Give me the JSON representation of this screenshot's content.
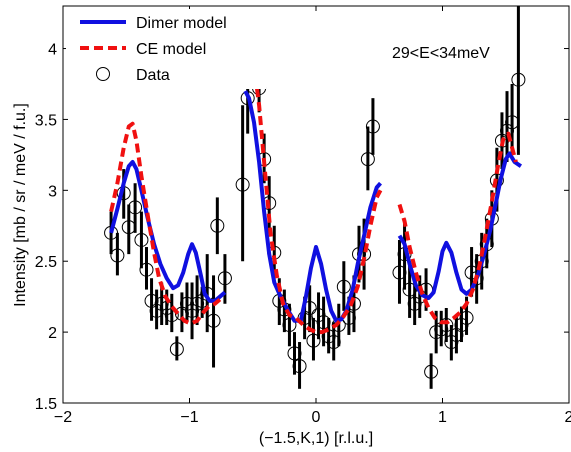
{
  "chart_data": {
    "type": "scatter",
    "xlabel": "(−1.5,K,1) [r.l.u.]",
    "ylabel": "Intensity [mb / sr / meV / f.u.]",
    "xlim": [
      -2,
      2
    ],
    "ylim": [
      1.5,
      4.3
    ],
    "xticks": [
      -2,
      -1,
      0,
      1,
      2
    ],
    "xtick_labels": [
      "−2",
      "−1",
      "0",
      "1",
      "2"
    ],
    "yticks": [
      1.5,
      2,
      2.5,
      3,
      3.5,
      4
    ],
    "ytick_labels": [
      "1.5",
      "2",
      "2.5",
      "3",
      "3.5",
      "4"
    ],
    "grid": false,
    "legend_position": "top-left",
    "annotation": "29<E<34meV",
    "series": [
      {
        "name": "Dimer model",
        "kind": "line",
        "style": "solid",
        "color": "#1010e0",
        "segments": [
          [
            [
              -1.62,
              2.7
            ],
            [
              -1.57,
              2.87
            ],
            [
              -1.52,
              3.05
            ],
            [
              -1.48,
              3.17
            ],
            [
              -1.45,
              3.2
            ],
            [
              -1.42,
              3.15
            ],
            [
              -1.38,
              3.0
            ],
            [
              -1.33,
              2.8
            ],
            [
              -1.28,
              2.62
            ],
            [
              -1.23,
              2.48
            ],
            [
              -1.18,
              2.38
            ],
            [
              -1.13,
              2.31
            ],
            [
              -1.09,
              2.33
            ],
            [
              -1.05,
              2.42
            ],
            [
              -1.01,
              2.55
            ],
            [
              -0.98,
              2.62
            ],
            [
              -0.95,
              2.56
            ],
            [
              -0.91,
              2.4
            ],
            [
              -0.88,
              2.27
            ],
            [
              -0.84,
              2.22
            ],
            [
              -0.8,
              2.22
            ],
            [
              -0.76,
              2.25
            ],
            [
              -0.72,
              2.28
            ]
          ],
          [
            [
              -0.56,
              3.7
            ],
            [
              -0.53,
              3.65
            ],
            [
              -0.49,
              3.48
            ],
            [
              -0.45,
              3.2
            ],
            [
              -0.41,
              2.85
            ],
            [
              -0.37,
              2.55
            ],
            [
              -0.33,
              2.35
            ],
            [
              -0.28,
              2.25
            ],
            [
              -0.22,
              2.15
            ],
            [
              -0.17,
              2.08
            ],
            [
              -0.12,
              2.08
            ],
            [
              -0.08,
              2.25
            ],
            [
              -0.04,
              2.45
            ],
            [
              0.0,
              2.6
            ],
            [
              0.04,
              2.48
            ],
            [
              0.08,
              2.3
            ],
            [
              0.12,
              2.15
            ],
            [
              0.16,
              2.08
            ],
            [
              0.2,
              2.09
            ],
            [
              0.24,
              2.15
            ],
            [
              0.29,
              2.3
            ],
            [
              0.33,
              2.48
            ],
            [
              0.38,
              2.68
            ],
            [
              0.43,
              2.88
            ],
            [
              0.48,
              3.02
            ],
            [
              0.51,
              3.05
            ]
          ],
          [
            [
              0.66,
              2.68
            ],
            [
              0.7,
              2.62
            ],
            [
              0.74,
              2.48
            ],
            [
              0.79,
              2.33
            ],
            [
              0.84,
              2.26
            ],
            [
              0.89,
              2.24
            ],
            [
              0.93,
              2.28
            ],
            [
              0.97,
              2.43
            ],
            [
              1.0,
              2.57
            ],
            [
              1.03,
              2.63
            ],
            [
              1.07,
              2.56
            ],
            [
              1.11,
              2.42
            ],
            [
              1.15,
              2.3
            ],
            [
              1.19,
              2.27
            ],
            [
              1.23,
              2.3
            ],
            [
              1.28,
              2.4
            ],
            [
              1.33,
              2.55
            ],
            [
              1.38,
              2.73
            ],
            [
              1.42,
              2.9
            ],
            [
              1.46,
              3.08
            ],
            [
              1.5,
              3.22
            ],
            [
              1.53,
              3.26
            ],
            [
              1.57,
              3.2
            ],
            [
              1.62,
              3.17
            ]
          ]
        ]
      },
      {
        "name": "CE model",
        "kind": "line",
        "style": "dashed",
        "color": "#f01010",
        "segments": [
          [
            [
              -1.62,
              2.85
            ],
            [
              -1.57,
              3.05
            ],
            [
              -1.52,
              3.3
            ],
            [
              -1.48,
              3.45
            ],
            [
              -1.45,
              3.47
            ],
            [
              -1.42,
              3.35
            ],
            [
              -1.38,
              3.1
            ],
            [
              -1.33,
              2.82
            ],
            [
              -1.28,
              2.56
            ],
            [
              -1.24,
              2.38
            ],
            [
              -1.19,
              2.25
            ],
            [
              -1.14,
              2.18
            ],
            [
              -1.09,
              2.13
            ],
            [
              -1.04,
              2.08
            ],
            [
              -0.99,
              2.06
            ],
            [
              -0.94,
              2.08
            ],
            [
              -0.89,
              2.14
            ],
            [
              -0.85,
              2.18
            ],
            [
              -0.8,
              2.2
            ],
            [
              -0.76,
              2.23
            ]
          ],
          [
            [
              -0.57,
              3.96
            ],
            [
              -0.54,
              3.96
            ],
            [
              -0.5,
              3.95
            ],
            [
              -0.45,
              3.6
            ],
            [
              -0.4,
              3.1
            ],
            [
              -0.36,
              2.7
            ],
            [
              -0.31,
              2.4
            ],
            [
              -0.26,
              2.2
            ],
            [
              -0.21,
              2.12
            ],
            [
              -0.16,
              2.1
            ],
            [
              -0.1,
              2.05
            ],
            [
              -0.05,
              2.02
            ],
            [
              0.0,
              2.0
            ],
            [
              0.05,
              2.0
            ],
            [
              0.1,
              2.02
            ],
            [
              0.16,
              2.05
            ],
            [
              0.21,
              2.1
            ],
            [
              0.27,
              2.18
            ],
            [
              0.33,
              2.32
            ],
            [
              0.38,
              2.52
            ],
            [
              0.43,
              2.75
            ],
            [
              0.48,
              2.95
            ],
            [
              0.51,
              3.0
            ]
          ],
          [
            [
              0.66,
              2.9
            ],
            [
              0.7,
              2.78
            ],
            [
              0.74,
              2.6
            ],
            [
              0.79,
              2.42
            ],
            [
              0.84,
              2.27
            ],
            [
              0.89,
              2.17
            ],
            [
              0.94,
              2.1
            ],
            [
              0.99,
              2.07
            ],
            [
              1.04,
              2.07
            ],
            [
              1.09,
              2.1
            ],
            [
              1.14,
              2.14
            ],
            [
              1.19,
              2.2
            ],
            [
              1.24,
              2.3
            ],
            [
              1.29,
              2.46
            ],
            [
              1.34,
              2.68
            ],
            [
              1.39,
              2.92
            ],
            [
              1.44,
              3.18
            ],
            [
              1.48,
              3.36
            ],
            [
              1.52,
              3.4
            ],
            [
              1.55,
              3.3
            ],
            [
              1.58,
              3.2
            ]
          ]
        ]
      },
      {
        "name": "Data",
        "kind": "errorbar",
        "marker": "open-circle",
        "color": "#000000",
        "points": [
          {
            "x": -1.62,
            "y": 2.7,
            "lo": 2.55,
            "hi": 2.85
          },
          {
            "x": -1.57,
            "y": 2.54,
            "lo": 2.4,
            "hi": 2.7
          },
          {
            "x": -1.52,
            "y": 2.98,
            "lo": 2.8,
            "hi": 3.15
          },
          {
            "x": -1.48,
            "y": 2.74,
            "lo": 2.55,
            "hi": 2.9
          },
          {
            "x": -1.43,
            "y": 2.88,
            "lo": 2.7,
            "hi": 3.05
          },
          {
            "x": -1.38,
            "y": 2.65,
            "lo": 2.45,
            "hi": 2.85
          },
          {
            "x": -1.34,
            "y": 2.44,
            "lo": 2.3,
            "hi": 2.6
          },
          {
            "x": -1.3,
            "y": 2.22,
            "lo": 2.08,
            "hi": 2.38
          },
          {
            "x": -1.26,
            "y": 2.15,
            "lo": 2.02,
            "hi": 2.3
          },
          {
            "x": -1.22,
            "y": 2.2,
            "lo": 2.05,
            "hi": 2.35
          },
          {
            "x": -1.18,
            "y": 2.17,
            "lo": 2.05,
            "hi": 2.3
          },
          {
            "x": -1.14,
            "y": 2.12,
            "lo": 2.0,
            "hi": 2.27
          },
          {
            "x": -1.1,
            "y": 1.88,
            "lo": 1.8,
            "hi": 1.97
          },
          {
            "x": -1.06,
            "y": 2.13,
            "lo": 2.0,
            "hi": 2.28
          },
          {
            "x": -1.02,
            "y": 2.2,
            "lo": 2.08,
            "hi": 2.35
          },
          {
            "x": -0.98,
            "y": 2.15,
            "lo": 1.95,
            "hi": 2.35
          },
          {
            "x": -0.94,
            "y": 2.2,
            "lo": 2.05,
            "hi": 2.4
          },
          {
            "x": -0.9,
            "y": 2.22,
            "lo": 2.1,
            "hi": 2.32
          },
          {
            "x": -0.86,
            "y": 2.27,
            "lo": 2.0,
            "hi": 2.55
          },
          {
            "x": -0.81,
            "y": 2.08,
            "lo": 1.75,
            "hi": 2.4
          },
          {
            "x": -0.78,
            "y": 2.75,
            "lo": 2.55,
            "hi": 2.95
          },
          {
            "x": -0.72,
            "y": 2.38,
            "lo": 2.2,
            "hi": 2.55
          },
          {
            "x": -0.58,
            "y": 3.04,
            "lo": 2.5,
            "hi": 3.6
          },
          {
            "x": -0.54,
            "y": 3.65,
            "lo": 3.4,
            "hi": 3.9
          },
          {
            "x": -0.49,
            "y": 3.9,
            "lo": 3.75,
            "hi": 4.05
          },
          {
            "x": -0.45,
            "y": 3.72,
            "lo": 3.55,
            "hi": 3.9
          },
          {
            "x": -0.41,
            "y": 3.22,
            "lo": 3.05,
            "hi": 3.4
          },
          {
            "x": -0.37,
            "y": 2.91,
            "lo": 2.7,
            "hi": 3.1
          },
          {
            "x": -0.33,
            "y": 2.56,
            "lo": 2.4,
            "hi": 2.75
          },
          {
            "x": -0.29,
            "y": 2.22,
            "lo": 2.05,
            "hi": 2.38
          },
          {
            "x": -0.25,
            "y": 2.16,
            "lo": 2.0,
            "hi": 2.3
          },
          {
            "x": -0.21,
            "y": 2.05,
            "lo": 1.9,
            "hi": 2.2
          },
          {
            "x": -0.17,
            "y": 1.85,
            "lo": 1.7,
            "hi": 2.0
          },
          {
            "x": -0.13,
            "y": 1.76,
            "lo": 1.6,
            "hi": 1.93
          },
          {
            "x": -0.09,
            "y": 2.1,
            "lo": 1.95,
            "hi": 2.25
          },
          {
            "x": -0.05,
            "y": 2.17,
            "lo": 2.0,
            "hi": 2.33
          },
          {
            "x": -0.02,
            "y": 1.94,
            "lo": 1.8,
            "hi": 2.1
          },
          {
            "x": 0.02,
            "y": 2.12,
            "lo": 1.95,
            "hi": 2.28
          },
          {
            "x": 0.06,
            "y": 2.07,
            "lo": 1.9,
            "hi": 2.25
          },
          {
            "x": 0.1,
            "y": 1.97,
            "lo": 1.85,
            "hi": 2.1
          },
          {
            "x": 0.14,
            "y": 1.93,
            "lo": 1.8,
            "hi": 2.07
          },
          {
            "x": 0.18,
            "y": 2.05,
            "lo": 1.9,
            "hi": 2.2
          },
          {
            "x": 0.22,
            "y": 2.32,
            "lo": 2.15,
            "hi": 2.5
          },
          {
            "x": 0.26,
            "y": 2.1,
            "lo": 1.98,
            "hi": 2.25
          },
          {
            "x": 0.3,
            "y": 2.2,
            "lo": 2.0,
            "hi": 2.4
          },
          {
            "x": 0.34,
            "y": 2.55,
            "lo": 2.35,
            "hi": 2.75
          },
          {
            "x": 0.38,
            "y": 2.55,
            "lo": 2.3,
            "hi": 2.8
          },
          {
            "x": 0.41,
            "y": 3.22,
            "lo": 3.0,
            "hi": 3.45
          },
          {
            "x": 0.45,
            "y": 3.45,
            "lo": 3.25,
            "hi": 3.65
          },
          {
            "x": 0.66,
            "y": 2.42,
            "lo": 2.2,
            "hi": 2.65
          },
          {
            "x": 0.7,
            "y": 2.55,
            "lo": 2.3,
            "hi": 2.8
          },
          {
            "x": 0.74,
            "y": 2.3,
            "lo": 2.1,
            "hi": 2.5
          },
          {
            "x": 0.78,
            "y": 2.2,
            "lo": 2.05,
            "hi": 2.38
          },
          {
            "x": 0.82,
            "y": 2.25,
            "lo": 2.1,
            "hi": 2.4
          },
          {
            "x": 0.87,
            "y": 2.3,
            "lo": 2.15,
            "hi": 2.45
          },
          {
            "x": 0.91,
            "y": 1.72,
            "lo": 1.6,
            "hi": 1.85
          },
          {
            "x": 0.95,
            "y": 2.0,
            "lo": 1.85,
            "hi": 2.15
          },
          {
            "x": 0.99,
            "y": 2.02,
            "lo": 1.9,
            "hi": 2.15
          },
          {
            "x": 1.03,
            "y": 2.05,
            "lo": 1.93,
            "hi": 2.17
          },
          {
            "x": 1.07,
            "y": 1.93,
            "lo": 1.8,
            "hi": 2.05
          },
          {
            "x": 1.11,
            "y": 1.98,
            "lo": 1.85,
            "hi": 2.12
          },
          {
            "x": 1.15,
            "y": 2.05,
            "lo": 1.93,
            "hi": 2.18
          },
          {
            "x": 1.19,
            "y": 2.1,
            "lo": 1.98,
            "hi": 2.25
          },
          {
            "x": 1.23,
            "y": 2.42,
            "lo": 2.25,
            "hi": 2.6
          },
          {
            "x": 1.27,
            "y": 2.38,
            "lo": 2.2,
            "hi": 2.55
          },
          {
            "x": 1.31,
            "y": 2.5,
            "lo": 2.3,
            "hi": 2.7
          },
          {
            "x": 1.35,
            "y": 2.62,
            "lo": 2.45,
            "hi": 2.8
          },
          {
            "x": 1.39,
            "y": 2.8,
            "lo": 2.6,
            "hi": 3.0
          },
          {
            "x": 1.43,
            "y": 3.07,
            "lo": 2.85,
            "hi": 3.3
          },
          {
            "x": 1.47,
            "y": 3.35,
            "lo": 3.15,
            "hi": 3.55
          },
          {
            "x": 1.51,
            "y": 3.42,
            "lo": 3.2,
            "hi": 3.7
          },
          {
            "x": 1.55,
            "y": 3.48,
            "lo": 3.25,
            "hi": 3.75
          },
          {
            "x": 1.6,
            "y": 3.78,
            "lo": 3.25,
            "hi": 4.3
          }
        ]
      }
    ]
  }
}
